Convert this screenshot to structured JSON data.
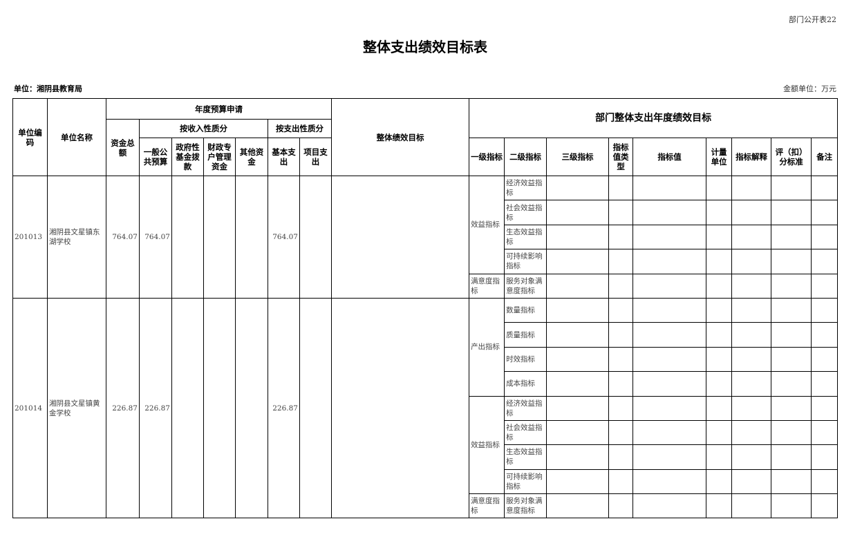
{
  "tag": "部门公开表22",
  "title": "整体支出绩效目标表",
  "unit": "单位：湘阴县教育局",
  "money_unit": "金额单位：万元",
  "header": {
    "code": "单位编码",
    "name": "单位名称",
    "budget": "年度预算申请",
    "goal": "整体绩效目标",
    "dept_goal": "部门整体支出年度绩效目标",
    "total": "资金总额",
    "by_income": "按收入性质分",
    "by_expense": "按支出性质分",
    "general": "一般公共预算",
    "gov_fund": "政府性基金拨款",
    "fiscal": "财政专户管理资金",
    "other": "其他资金",
    "basic": "基本支出",
    "project": "项目支出",
    "level1": "一级指标",
    "level2": "二级指标",
    "level3": "三级指标",
    "value_type": "指标值类型",
    "value": "指标值",
    "measure_unit": "计量单位",
    "explain": "指标解释",
    "score": "评（扣）分标准",
    "remark": "备注"
  },
  "groups": [
    {
      "code": "201013",
      "name": "湘阴县文星镇东湖学校",
      "total": "764.07",
      "general": "764.07",
      "gov_fund": "",
      "fiscal": "",
      "other": "",
      "basic": "764.07",
      "project": "",
      "goal": "",
      "indicators": [
        {
          "level1": "效益指标",
          "level2": [
            "经济效益指标",
            "社会效益指标",
            "生态效益指标",
            "可持续影响指标"
          ]
        },
        {
          "level1": "满意度指标",
          "level2": [
            "服务对象满意度指标"
          ]
        }
      ]
    },
    {
      "code": "201014",
      "name": "湘阴县文星镇黄金学校",
      "total": "226.87",
      "general": "226.87",
      "gov_fund": "",
      "fiscal": "",
      "other": "",
      "basic": "226.87",
      "project": "",
      "goal": "",
      "indicators": [
        {
          "level1": "产出指标",
          "level2": [
            "数量指标",
            "质量指标",
            "时效指标",
            "成本指标"
          ]
        },
        {
          "level1": "效益指标",
          "level2": [
            "经济效益指标",
            "社会效益指标",
            "生态效益指标",
            "可持续影响指标"
          ]
        },
        {
          "level1": "满意度指标",
          "level2": [
            "服务对象满意度指标"
          ]
        }
      ]
    }
  ]
}
